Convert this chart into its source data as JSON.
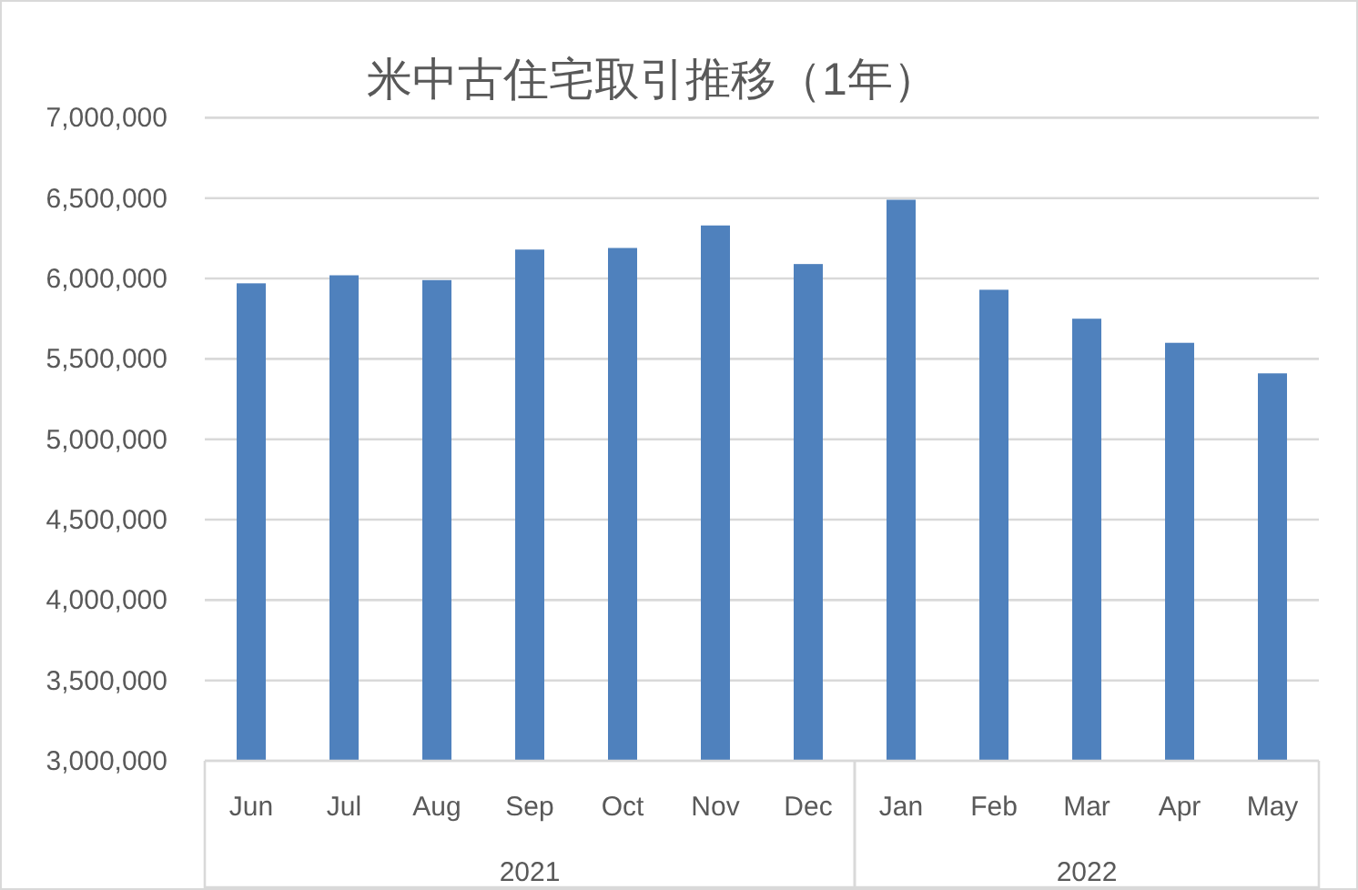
{
  "chart_data": {
    "type": "bar",
    "title": "米中古住宅取引推移（1年）",
    "categories": [
      "Jun",
      "Jul",
      "Aug",
      "Sep",
      "Oct",
      "Nov",
      "Dec",
      "Jan",
      "Feb",
      "Mar",
      "Apr",
      "May"
    ],
    "values": [
      5970000,
      6020000,
      5990000,
      6180000,
      6190000,
      6330000,
      6090000,
      6490000,
      5930000,
      5750000,
      5600000,
      5410000
    ],
    "color": "#4f81bd",
    "ylim": [
      3000000,
      7000000
    ],
    "yticks": [
      {
        "value": 3000000,
        "label": "3,000,000"
      },
      {
        "value": 3500000,
        "label": "3,500,000"
      },
      {
        "value": 4000000,
        "label": "4,000,000"
      },
      {
        "value": 4500000,
        "label": "4,500,000"
      },
      {
        "value": 5000000,
        "label": "5,000,000"
      },
      {
        "value": 5500000,
        "label": "5,500,000"
      },
      {
        "value": 6000000,
        "label": "6,000,000"
      },
      {
        "value": 6500000,
        "label": "6,500,000"
      },
      {
        "value": 7000000,
        "label": "7,000,000"
      }
    ],
    "grid": "y",
    "annotations": [
      "2021",
      "2022"
    ]
  }
}
